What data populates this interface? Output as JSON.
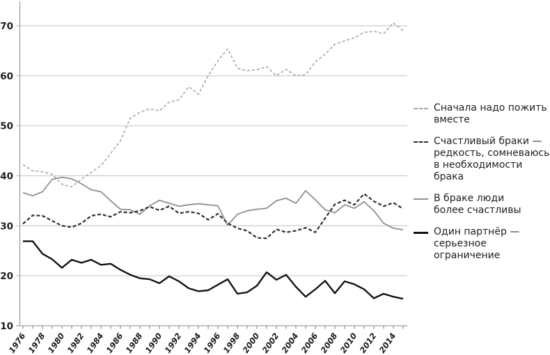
{
  "chart_data": {
    "type": "line",
    "title": "",
    "xlabel": "",
    "ylabel": "",
    "x": [
      1976,
      1977,
      1978,
      1979,
      1980,
      1981,
      1982,
      1983,
      1984,
      1985,
      1986,
      1987,
      1988,
      1989,
      1990,
      1991,
      1992,
      1993,
      1994,
      1995,
      1996,
      1997,
      1998,
      1999,
      2000,
      2001,
      2002,
      2003,
      2004,
      2005,
      2006,
      2007,
      2008,
      2009,
      2010,
      2011,
      2012,
      2013,
      2014,
      2015
    ],
    "x_tick_labels": [
      "1976",
      "1978",
      "1980",
      "1982",
      "1984",
      "1986",
      "1988",
      "1990",
      "1992",
      "1994",
      "1996",
      "1998",
      "2000",
      "2002",
      "2004",
      "2006",
      "2008",
      "2010",
      "2012",
      "2014"
    ],
    "y_ticks": [
      10,
      20,
      30,
      40,
      50,
      60,
      70
    ],
    "ylim": [
      10,
      73
    ],
    "grid": "horizontal",
    "legend_position": "right",
    "series": [
      {
        "name": "Сначала надо пожить вместе",
        "style": "dashed",
        "color": "#a7a7a7",
        "dash": "4 3",
        "width": 1.6,
        "values": [
          42.2,
          41.0,
          40.8,
          40.3,
          38.3,
          37.8,
          39.3,
          40.7,
          42.0,
          44.5,
          47.0,
          51.5,
          52.7,
          53.4,
          53.0,
          54.7,
          55.2,
          57.8,
          56.3,
          60.0,
          63.0,
          65.4,
          61.5,
          61.0,
          61.2,
          61.8,
          60.0,
          61.3,
          60.0,
          60.2,
          62.8,
          64.3,
          66.3,
          67.0,
          67.6,
          68.7,
          68.9,
          68.4,
          70.6,
          69.0
        ]
      },
      {
        "name": "Счастливый браки — редкость, сомневаюсь в необходимости брака",
        "style": "dashed",
        "color": "#2d2d2d",
        "dash": "5 3",
        "width": 2.2,
        "values": [
          30.4,
          32.1,
          32.0,
          31.0,
          30.0,
          29.7,
          30.5,
          32.0,
          32.3,
          31.8,
          32.8,
          32.6,
          33.0,
          33.8,
          33.1,
          33.9,
          32.5,
          32.8,
          32.5,
          31.2,
          32.4,
          30.5,
          29.5,
          29.0,
          27.6,
          27.5,
          29.3,
          28.7,
          29.0,
          29.6,
          28.7,
          31.5,
          34.3,
          35.1,
          34.2,
          36.4,
          34.9,
          33.9,
          34.6,
          33.4
        ]
      },
      {
        "name": "В браке люди более счастливы",
        "style": "solid",
        "color": "#8f8f8f",
        "dash": "",
        "width": 1.8,
        "values": [
          36.6,
          36.0,
          36.8,
          39.3,
          39.7,
          39.4,
          38.4,
          37.2,
          36.8,
          35.0,
          33.3,
          33.2,
          32.3,
          34.0,
          35.1,
          34.5,
          33.9,
          34.2,
          34.4,
          34.2,
          34.0,
          30.1,
          32.3,
          33.0,
          33.3,
          33.5,
          35.0,
          35.5,
          34.5,
          37.0,
          35.2,
          33.2,
          32.6,
          34.2,
          33.5,
          34.8,
          33.0,
          30.5,
          29.5,
          29.2
        ]
      },
      {
        "name": "Один партнёр — серьезное ограничение",
        "style": "solid",
        "color": "#131313",
        "dash": "",
        "width": 2.4,
        "values": [
          26.9,
          26.9,
          24.4,
          23.3,
          21.6,
          23.2,
          22.6,
          23.2,
          22.2,
          22.4,
          21.2,
          20.2,
          19.5,
          19.3,
          18.5,
          19.9,
          18.9,
          17.5,
          16.9,
          17.1,
          18.2,
          19.3,
          16.4,
          16.7,
          18.0,
          20.7,
          19.2,
          20.2,
          17.8,
          15.8,
          17.3,
          19.0,
          16.5,
          18.9,
          18.3,
          17.3,
          15.5,
          16.4,
          15.8,
          15.4
        ]
      }
    ]
  },
  "legend": {
    "items": [
      {
        "lines": [
          "Сначала надо пожить",
          "вместе",
          ""
        ]
      },
      {
        "lines": [
          "Счастливый браки —",
          "редкость, сомневаюсь",
          "в необходимости брака"
        ]
      },
      {
        "lines": [
          "В браке люди",
          "более счастливы",
          ""
        ]
      },
      {
        "lines": [
          "Один партнёр —",
          "серьезное",
          "ограничение"
        ]
      }
    ]
  },
  "colors": {
    "gridline": "#cccccc",
    "axis": "#9f9f9f",
    "tick": "#8c8c8c",
    "label": "#1c1c1c"
  }
}
